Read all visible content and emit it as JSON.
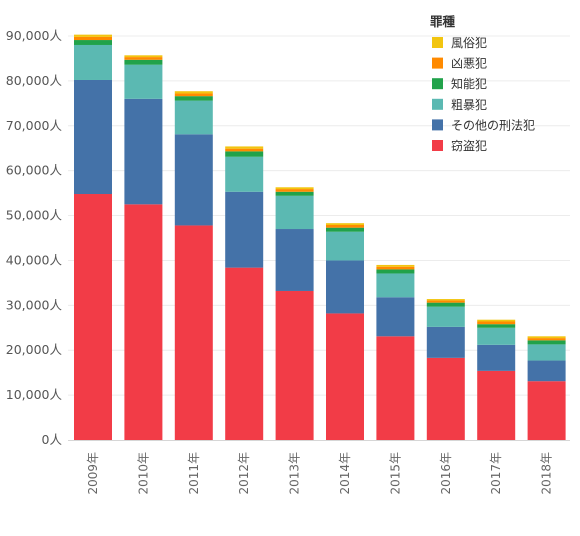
{
  "chart_data": {
    "type": "bar",
    "stacked": true,
    "title": "",
    "xlabel": "",
    "ylabel": "",
    "unit_suffix": "人",
    "ylim": [
      0,
      92000
    ],
    "y_ticks": [
      "0人",
      "10,000人",
      "20,000人",
      "30,000人",
      "40,000人",
      "50,000人",
      "60,000人",
      "70,000人",
      "80,000人",
      "90,000人"
    ],
    "y_tick_values": [
      0,
      10000,
      20000,
      30000,
      40000,
      50000,
      60000,
      70000,
      80000,
      90000
    ],
    "grid": true,
    "legend_title": "罪種",
    "legend_position": "top-right",
    "categories": [
      "2009年",
      "2010年",
      "2011年",
      "2012年",
      "2013年",
      "2014年",
      "2015年",
      "2016年",
      "2017年",
      "2018年"
    ],
    "series": [
      {
        "name": "窃盗犯",
        "color": "#f23c47",
        "values": [
          54800,
          52500,
          47800,
          38400,
          33200,
          28200,
          23100,
          18300,
          15400,
          13100
        ]
      },
      {
        "name": "その他の刑法犯",
        "color": "#4472a8",
        "values": [
          25400,
          23500,
          20300,
          16900,
          13800,
          11800,
          8700,
          6900,
          5800,
          4600
        ]
      },
      {
        "name": "粗暴犯",
        "color": "#5bb9b2",
        "values": [
          7800,
          7600,
          7500,
          7800,
          7400,
          6400,
          5300,
          4500,
          3800,
          3600
        ]
      },
      {
        "name": "知能犯",
        "color": "#21a24a",
        "values": [
          1100,
          1100,
          1000,
          1200,
          900,
          900,
          900,
          900,
          800,
          900
        ]
      },
      {
        "name": "凶悪犯",
        "color": "#ff8a00",
        "values": [
          700,
          600,
          600,
          600,
          600,
          600,
          600,
          500,
          600,
          500
        ]
      },
      {
        "name": "風俗犯",
        "color": "#f2c510",
        "values": [
          500,
          400,
          500,
          500,
          400,
          400,
          400,
          300,
          400,
          400
        ]
      }
    ]
  }
}
